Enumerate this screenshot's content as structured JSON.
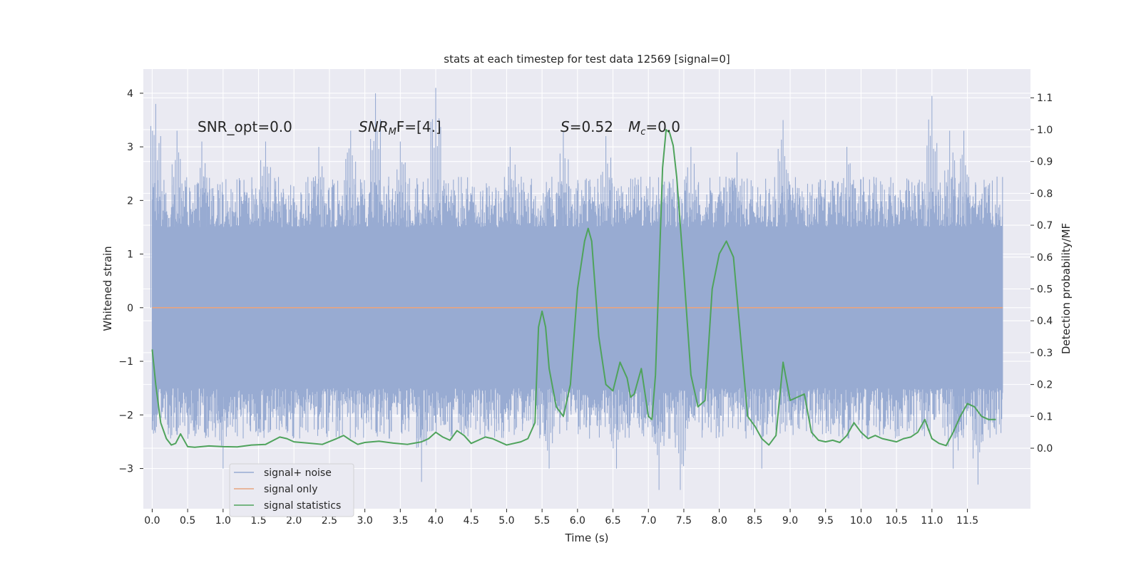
{
  "chart_data": {
    "type": "line",
    "title": "stats at each timestep for test data 12569 [signal=0]",
    "xlabel": "Time (s)",
    "ylabel": "Whitened strain",
    "y2label": "Detection probability/MF",
    "xlim": [
      -0.125,
      12.39
    ],
    "ylim": [
      -3.75,
      4.45
    ],
    "y2lim": [
      -0.19,
      1.19
    ],
    "x_ticks": [
      0.0,
      0.5,
      1.0,
      1.5,
      2.0,
      2.5,
      3.0,
      3.5,
      4.0,
      4.5,
      5.0,
      5.5,
      6.0,
      6.5,
      7.0,
      7.5,
      8.0,
      8.5,
      9.0,
      9.5,
      10.0,
      10.5,
      11.0,
      11.5
    ],
    "x_tick_labels": [
      "0.0",
      "0.5",
      "1.0",
      "1.5",
      "2.0",
      "2.5",
      "3.0",
      "3.5",
      "4.0",
      "4.5",
      "5.0",
      "5.5",
      "6.0",
      "6.5",
      "7.0",
      "7.5",
      "8.0",
      "8.5",
      "9.0",
      "9.5",
      "10.0",
      "10.5",
      "11.0",
      "11.5"
    ],
    "y_ticks": [
      4,
      3,
      2,
      1,
      0,
      -1,
      -2,
      -3
    ],
    "y_tick_labels": [
      "4",
      "3",
      "2",
      "1",
      "0",
      "−1",
      "−2",
      "−3"
    ],
    "y2_ticks": [
      1.1,
      1.0,
      0.9,
      0.8,
      0.7,
      0.6,
      0.5,
      0.4,
      0.3,
      0.2,
      0.1,
      0.0
    ],
    "y2_tick_labels": [
      "1.1",
      "1.0",
      "0.9",
      "0.8",
      "0.7",
      "0.6",
      "0.5",
      "0.4",
      "0.3",
      "0.2",
      "0.1",
      "0.0"
    ],
    "grid": true,
    "legend_position": "lower-left",
    "annotations": {
      "snr_opt": "SNR_opt=0.0",
      "snr_mf_main": "SNR",
      "snr_mf_sub": "M",
      "snr_mf_rest": "F=[4.]",
      "s_label": "S",
      "s_value": "=0.52",
      "mc_label": "M",
      "mc_sub": "c",
      "mc_value": "=0.0"
    },
    "series": [
      {
        "name": "signal+ noise",
        "axis": "left",
        "color": "#98abd2",
        "envelope": {
          "x_range": [
            0.0,
            12.0
          ],
          "core_abs": 1.5,
          "typical_peak_abs": 2.2,
          "max_value": 4.1,
          "min_value": -3.4,
          "notable_peaks": [
            {
              "x": 0.05,
              "y": 3.8
            },
            {
              "x": 0.35,
              "y": 3.3
            },
            {
              "x": 0.7,
              "y": 3.1
            },
            {
              "x": 1.6,
              "y": 3.1
            },
            {
              "x": 2.35,
              "y": 3.0
            },
            {
              "x": 2.8,
              "y": 3.3
            },
            {
              "x": 3.15,
              "y": 4.0
            },
            {
              "x": 3.5,
              "y": 3.1
            },
            {
              "x": 4.0,
              "y": 4.1
            },
            {
              "x": 5.05,
              "y": 3.0
            },
            {
              "x": 5.8,
              "y": 3.3
            },
            {
              "x": 6.4,
              "y": 3.2
            },
            {
              "x": 7.6,
              "y": 3.0
            },
            {
              "x": 8.25,
              "y": 2.9
            },
            {
              "x": 8.9,
              "y": 3.5
            },
            {
              "x": 9.8,
              "y": 3.0
            },
            {
              "x": 11.0,
              "y": 3.95
            },
            {
              "x": 11.25,
              "y": 3.3
            },
            {
              "x": 11.45,
              "y": 3.3
            },
            {
              "x": 1.0,
              "y": -3.0
            },
            {
              "x": 3.8,
              "y": -3.25
            },
            {
              "x": 5.6,
              "y": -3.0
            },
            {
              "x": 6.55,
              "y": -3.0
            },
            {
              "x": 7.15,
              "y": -3.4
            },
            {
              "x": 7.45,
              "y": -3.4
            },
            {
              "x": 8.6,
              "y": -3.0
            },
            {
              "x": 11.3,
              "y": -3.0
            },
            {
              "x": 11.65,
              "y": -3.3
            }
          ]
        }
      },
      {
        "name": "signal only",
        "axis": "left",
        "color": "#e8a47f",
        "x": [
          0.0,
          12.0
        ],
        "y": [
          0.0,
          0.0
        ]
      },
      {
        "name": "signal statistics",
        "axis": "right",
        "color": "#4fa35c",
        "x": [
          0.0,
          0.05,
          0.12,
          0.2,
          0.27,
          0.33,
          0.4,
          0.5,
          0.6,
          0.8,
          1.0,
          1.2,
          1.4,
          1.6,
          1.8,
          1.9,
          2.0,
          2.2,
          2.4,
          2.6,
          2.7,
          2.8,
          2.9,
          3.0,
          3.2,
          3.4,
          3.6,
          3.8,
          3.9,
          4.0,
          4.1,
          4.2,
          4.3,
          4.4,
          4.5,
          4.6,
          4.7,
          4.8,
          5.0,
          5.2,
          5.3,
          5.4,
          5.45,
          5.5,
          5.55,
          5.6,
          5.7,
          5.8,
          5.9,
          6.0,
          6.1,
          6.15,
          6.2,
          6.3,
          6.4,
          6.5,
          6.6,
          6.7,
          6.75,
          6.8,
          6.9,
          7.0,
          7.05,
          7.1,
          7.15,
          7.2,
          7.25,
          7.3,
          7.35,
          7.4,
          7.45,
          7.5,
          7.6,
          7.7,
          7.8,
          7.9,
          8.0,
          8.1,
          8.2,
          8.3,
          8.4,
          8.5,
          8.6,
          8.7,
          8.8,
          8.9,
          9.0,
          9.1,
          9.2,
          9.3,
          9.4,
          9.5,
          9.6,
          9.7,
          9.8,
          9.9,
          10.0,
          10.1,
          10.2,
          10.3,
          10.4,
          10.5,
          10.6,
          10.7,
          10.8,
          10.9,
          11.0,
          11.1,
          11.2,
          11.3,
          11.4,
          11.5,
          11.6,
          11.7,
          11.8,
          11.9
        ],
        "y": [
          0.31,
          0.2,
          0.08,
          0.03,
          0.01,
          0.015,
          0.045,
          0.005,
          0.003,
          0.007,
          0.005,
          0.004,
          0.01,
          0.012,
          0.035,
          0.03,
          0.02,
          0.016,
          0.012,
          0.03,
          0.04,
          0.025,
          0.012,
          0.018,
          0.022,
          0.016,
          0.012,
          0.02,
          0.03,
          0.05,
          0.035,
          0.025,
          0.055,
          0.04,
          0.015,
          0.025,
          0.035,
          0.03,
          0.01,
          0.02,
          0.03,
          0.08,
          0.38,
          0.43,
          0.38,
          0.25,
          0.13,
          0.1,
          0.2,
          0.5,
          0.65,
          0.69,
          0.65,
          0.35,
          0.2,
          0.18,
          0.27,
          0.22,
          0.16,
          0.17,
          0.25,
          0.1,
          0.09,
          0.23,
          0.55,
          0.88,
          1.0,
          0.99,
          0.95,
          0.85,
          0.7,
          0.55,
          0.23,
          0.13,
          0.15,
          0.5,
          0.61,
          0.65,
          0.6,
          0.35,
          0.1,
          0.07,
          0.03,
          0.01,
          0.04,
          0.27,
          0.15,
          0.16,
          0.17,
          0.05,
          0.025,
          0.02,
          0.025,
          0.018,
          0.04,
          0.08,
          0.05,
          0.03,
          0.04,
          0.03,
          0.025,
          0.02,
          0.03,
          0.035,
          0.05,
          0.09,
          0.03,
          0.015,
          0.008,
          0.05,
          0.1,
          0.14,
          0.13,
          0.1,
          0.09,
          0.09
        ]
      }
    ]
  }
}
